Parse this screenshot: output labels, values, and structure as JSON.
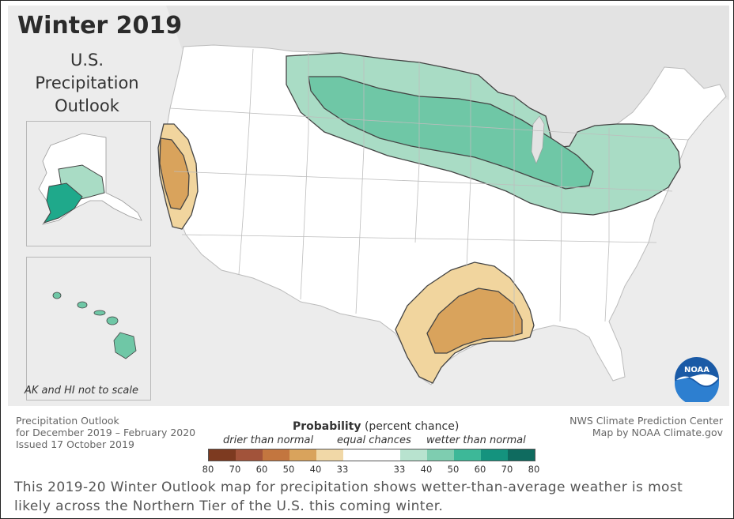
{
  "title": "Winter 2019",
  "subtitle_lines": [
    "U.S.",
    "Precipitation",
    "Outlook"
  ],
  "inset_note": "AK and HI not to scale",
  "logo": {
    "text": "NOAA",
    "icon": "noaa-logo"
  },
  "info_left": [
    "Precipitation Outlook",
    "for December 2019 – February 2020",
    "Issued 17 October 2019"
  ],
  "info_right": [
    "NWS Climate Prediction Center",
    "Map by NOAA Climate.gov"
  ],
  "legend": {
    "title_bold": "Probability",
    "title_rest": " (percent chance)",
    "categories": [
      "drier than normal",
      "equal chances",
      "wetter than normal"
    ],
    "colors": [
      "#7d3a20",
      "#a2533a",
      "#c3763f",
      "#d9a35c",
      "#f1d8a7",
      "#ffffff",
      "#b8e3cf",
      "#7ecdb0",
      "#3db898",
      "#14937e",
      "#0f6b5f"
    ],
    "ticks_left": [
      "80",
      "70",
      "60",
      "50",
      "40",
      "33"
    ],
    "ticks_right": [
      "33",
      "40",
      "50",
      "60",
      "70",
      "80"
    ]
  },
  "map_colors": {
    "land": "#ffffff",
    "background": "#ececec",
    "wet_40": "#a9dcc5",
    "wet_50": "#6fc7a6",
    "wet_60": "#1fa98b",
    "dry_40": "#f1d59e",
    "dry_50": "#d9a35c",
    "border": "#444444"
  },
  "caption": "This 2019-20 Winter Outlook map for precipitation shows wetter-than-average weather is most likely across the Northern Tier of the U.S. this coming winter."
}
